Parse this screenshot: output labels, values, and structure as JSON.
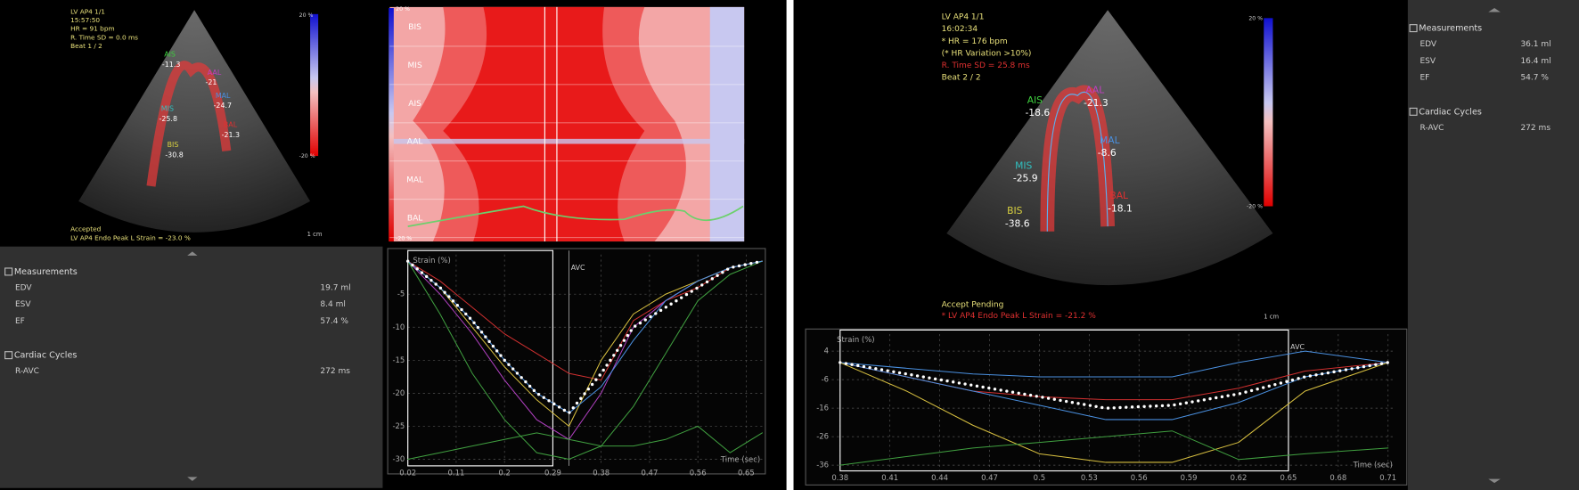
{
  "left": {
    "echo": {
      "info": [
        {
          "text": "LV AP4 1/1",
          "color": "#e8e07a"
        },
        {
          "text": "15:57:50",
          "color": "#e8e07a"
        },
        {
          "text": "HR = 91 bpm",
          "color": "#e8e07a"
        },
        {
          "text": "R. Time SD = 0.0 ms",
          "color": "#e8e07a"
        },
        {
          "text": "Beat 1 / 2",
          "color": "#e8e07a"
        }
      ],
      "footer": [
        {
          "text": "Accepted",
          "color": "#e8e07a"
        },
        {
          "text": "LV AP4 Endo Peak L Strain = -23.0 %",
          "color": "#e8e07a"
        }
      ],
      "segments": [
        {
          "name": "AIS",
          "value": -11.3,
          "color": "#3ecf3e"
        },
        {
          "name": "AAL",
          "value": -21.0,
          "color": "#c040c0"
        },
        {
          "name": "MAL",
          "value": -24.7,
          "color": "#4a90e0"
        },
        {
          "name": "MIS",
          "value": -25.8,
          "color": "#30c0c0"
        },
        {
          "name": "BAL",
          "value": -21.3,
          "color": "#e03030"
        },
        {
          "name": "BIS",
          "value": -30.8,
          "color": "#d8d040"
        }
      ],
      "scale_top": "20 %",
      "scale_bottom": "-20 %",
      "scale_length": "1 cm"
    },
    "heatmap": {
      "rows": [
        "BIS",
        "MIS",
        "AIS",
        "AAL",
        "MAL",
        "BAL"
      ],
      "scale_top": "20 %",
      "scale_bottom": "-20 %"
    },
    "measurements": {
      "title": "Measurements",
      "rows": [
        [
          "EDV",
          "19.7 ml"
        ],
        [
          "ESV",
          "8.4 ml"
        ],
        [
          "EF",
          "57.4 %"
        ]
      ],
      "cycles_title": "Cardiac Cycles",
      "cycles_rows": [
        [
          "R-AVC",
          "272 ms"
        ]
      ]
    },
    "chart": {
      "type": "line",
      "y_label": "Strain (%)",
      "x_label": "Time (sec)",
      "annotation": "AVC",
      "avc": 0.32,
      "cycle_box": [
        0.02,
        0.29
      ],
      "xlim": [
        0.02,
        0.68
      ],
      "ylim": [
        1,
        -31
      ],
      "xticks": [
        0.02,
        0.11,
        0.2,
        0.29,
        0.38,
        0.47,
        0.56,
        0.65
      ],
      "yticks": [
        -5,
        -10,
        -15,
        -20,
        -25,
        -30
      ],
      "x": [
        0.02,
        0.08,
        0.14,
        0.2,
        0.26,
        0.32,
        0.38,
        0.44,
        0.5,
        0.56,
        0.62,
        0.68
      ],
      "series": [
        {
          "color": "#d03030",
          "values": [
            0,
            -3,
            -7,
            -11,
            -14,
            -17,
            -18,
            -9,
            -6,
            -4,
            -1,
            0
          ]
        },
        {
          "color": "#b040c0",
          "values": [
            0,
            -5,
            -11,
            -18,
            -24,
            -27,
            -20,
            -10,
            -6,
            -3,
            -1,
            0
          ]
        },
        {
          "color": "#40a040",
          "values": [
            0,
            -8,
            -17,
            -24,
            -29,
            -30,
            -28,
            -22,
            -14,
            -6,
            -2,
            0
          ]
        },
        {
          "color": "#d8c040",
          "values": [
            0,
            -4,
            -10,
            -16,
            -21,
            -25,
            -15,
            -8,
            -5,
            -3,
            -1,
            0
          ]
        },
        {
          "color": "#4a90e0",
          "values": [
            0,
            -4,
            -9,
            -15,
            -20,
            -23,
            -19,
            -12,
            -6,
            -3,
            -1,
            0
          ]
        },
        {
          "color": "#40a040",
          "values": [
            -30,
            -29,
            -28,
            -27,
            -26,
            -27,
            -28,
            -28,
            -27,
            -25,
            -29,
            -26
          ]
        },
        {
          "color": "#ffffff",
          "style": "dotted",
          "values": [
            0,
            -4,
            -9,
            -15,
            -20,
            -23,
            -17,
            -10,
            -7,
            -4,
            -1,
            0
          ]
        }
      ]
    }
  },
  "right": {
    "echo": {
      "info": [
        {
          "text": "LV AP4 1/1",
          "color": "#e8e07a"
        },
        {
          "text": "16:02:34",
          "color": "#e8e07a"
        },
        {
          "text": "* HR = 176 bpm",
          "color": "#e8e07a"
        },
        {
          "text": "(* HR Variation >10%)",
          "color": "#e8e07a"
        },
        {
          "text": "R. Time SD = 25.8 ms",
          "color": "#e03030"
        },
        {
          "text": "Beat 2 / 2",
          "color": "#e8e07a"
        }
      ],
      "footer": [
        {
          "text": "Accept Pending",
          "color": "#e8e07a"
        },
        {
          "text": "* LV AP4 Endo Peak L Strain = -21.2 %",
          "color": "#e03030"
        }
      ],
      "segments": [
        {
          "name": "AIS",
          "value": -18.6,
          "color": "#3ecf3e"
        },
        {
          "name": "AAL",
          "value": -21.3,
          "color": "#c040c0"
        },
        {
          "name": "MAL",
          "value": -8.6,
          "color": "#4a90e0"
        },
        {
          "name": "MIS",
          "value": -25.9,
          "color": "#30c0c0"
        },
        {
          "name": "BAL",
          "value": -18.1,
          "color": "#e03030"
        },
        {
          "name": "BIS",
          "value": -38.6,
          "color": "#d8d040"
        }
      ],
      "scale_top": "20 %",
      "scale_bottom": "-20 %",
      "scale_length": "1 cm"
    },
    "measurements": {
      "title": "Measurements",
      "rows": [
        [
          "EDV",
          "36.1 ml"
        ],
        [
          "ESV",
          "16.4 ml"
        ],
        [
          "EF",
          "54.7 %"
        ]
      ],
      "cycles_title": "Cardiac Cycles",
      "cycles_rows": [
        [
          "R-AVC",
          "272 ms"
        ]
      ]
    },
    "chart": {
      "type": "line",
      "y_label": "Strain (%)",
      "x_label": "Time (sec)",
      "annotation": "AVC",
      "avc": 0.65,
      "cycle_box": [
        0.38,
        0.65
      ],
      "xlim": [
        0.375,
        0.714
      ],
      "ylim": [
        10,
        -38
      ],
      "xticks": [
        0.38,
        0.41,
        0.44,
        0.47,
        0.5,
        0.53,
        0.56,
        0.59,
        0.62,
        0.65,
        0.68,
        0.71
      ],
      "yticks": [
        4,
        -6,
        -16,
        -26,
        -36
      ],
      "x": [
        0.38,
        0.42,
        0.46,
        0.5,
        0.54,
        0.58,
        0.62,
        0.66,
        0.71
      ],
      "series": [
        {
          "color": "#4a90e0",
          "values": [
            0,
            -2,
            -4,
            -5,
            -5,
            -5,
            0,
            4,
            0
          ]
        },
        {
          "color": "#d03030",
          "values": [
            0,
            -5,
            -10,
            -12,
            -13,
            -13,
            -9,
            -3,
            0
          ]
        },
        {
          "color": "#4a90e0",
          "values": [
            0,
            -5,
            -10,
            -15,
            -20,
            -20,
            -14,
            -5,
            0
          ]
        },
        {
          "color": "#d8c040",
          "values": [
            0,
            -10,
            -22,
            -32,
            -35,
            -35,
            -28,
            -10,
            0
          ]
        },
        {
          "color": "#40a040",
          "values": [
            -36,
            -33,
            -30,
            -28,
            -26,
            -24,
            -34,
            -32,
            -30
          ]
        },
        {
          "color": "#ffffff",
          "style": "dotted",
          "values": [
            0,
            -4,
            -8,
            -12,
            -16,
            -15,
            -11,
            -5,
            0
          ]
        }
      ]
    }
  }
}
